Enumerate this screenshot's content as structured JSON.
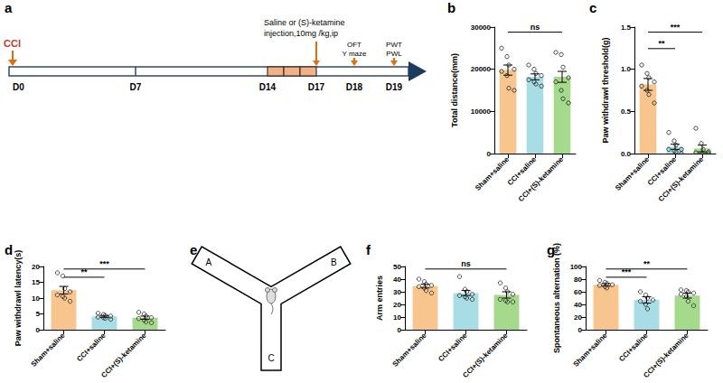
{
  "chart_data": [
    {
      "panel": "b",
      "type": "bar",
      "categories": [
        "Sham+saline",
        "CCI+saline",
        "CCI+(S)-ketamine"
      ],
      "values": [
        19800,
        18200,
        18200
      ],
      "errors": [
        1200,
        700,
        1300
      ],
      "points": [
        [
          25000,
          23000,
          21000,
          20000,
          19500,
          18500,
          15500,
          15000
        ],
        [
          21000,
          20000,
          19000,
          18500,
          17500,
          17000,
          16500,
          16000
        ],
        [
          24000,
          23500,
          20500,
          18000,
          17000,
          15000,
          13000,
          12000
        ]
      ],
      "colors": [
        "#f8c58e",
        "#a9dde6",
        "#a5d98c"
      ],
      "ylabel": "Total distance(mm)",
      "ylim": [
        0,
        30000
      ],
      "yticks": [
        0,
        10000,
        20000,
        30000
      ],
      "grid": false,
      "annotations": [
        {
          "from": 0,
          "to": 2,
          "text": "ns"
        }
      ]
    },
    {
      "panel": "c",
      "type": "bar",
      "categories": [
        "Sham+saline",
        "CCI+saline",
        "CCI+(S)-ketamine"
      ],
      "values": [
        0.82,
        0.08,
        0.06
      ],
      "errors": [
        0.07,
        0.03,
        0.04
      ],
      "points": [
        [
          1.05,
          0.95,
          0.9,
          0.85,
          0.8,
          0.75,
          0.7,
          0.6
        ],
        [
          0.25,
          0.15,
          0.1,
          0.05,
          0.05,
          0.03,
          0.02,
          0.0
        ],
        [
          0.3,
          0.12,
          0.05,
          0.02,
          0.01,
          0.0,
          0.0,
          0.0
        ]
      ],
      "colors": [
        "#f8c58e",
        "#a9dde6",
        "#a5d98c"
      ],
      "ylabel": "Paw withdrawl threshold(g)",
      "ylim": [
        0,
        1.5
      ],
      "yticks": [
        {
          "value": 0,
          "label": "0.0"
        },
        0.5,
        {
          "value": 1,
          "label": "1.0"
        },
        1.5
      ],
      "grid": false,
      "annotations": [
        {
          "from": 0,
          "to": 1,
          "text": "**"
        },
        {
          "from": 0,
          "to": 2,
          "text": "***"
        }
      ]
    },
    {
      "panel": "d",
      "type": "bar",
      "categories": [
        "Sham+saline",
        "CCI+saline",
        "CCI+(S)-ketamine"
      ],
      "values": [
        12.5,
        4.2,
        3.8
      ],
      "errors": [
        1.2,
        0.3,
        0.5
      ],
      "points": [
        [
          18,
          17,
          13,
          12,
          11,
          10.5,
          10,
          9
        ],
        [
          5.2,
          4.8,
          4.5,
          4.3,
          4.0,
          3.8,
          3.6,
          3.3
        ],
        [
          5.5,
          5.0,
          4.3,
          3.8,
          3.5,
          3.0,
          2.5,
          2.2
        ]
      ],
      "colors": [
        "#f8c58e",
        "#a9dde6",
        "#a5d98c"
      ],
      "ylabel": "Paw withdrawl latency(s)",
      "ylim": [
        0,
        20
      ],
      "yticks": [
        0,
        5,
        10,
        15,
        20
      ],
      "grid": false,
      "annotations": [
        {
          "from": 0,
          "to": 1,
          "text": "**"
        },
        {
          "from": 0,
          "to": 2,
          "text": "***"
        }
      ]
    },
    {
      "panel": "f",
      "type": "bar",
      "categories": [
        "Sham+saline",
        "CCI+saline",
        "CCI+(S)-ketamine"
      ],
      "values": [
        34.5,
        29,
        27.5
      ],
      "errors": [
        1.5,
        2,
        2.5
      ],
      "points": [
        [
          40,
          38,
          36,
          35,
          34,
          33,
          31,
          29
        ],
        [
          42,
          32,
          30,
          28,
          27,
          26,
          25,
          24
        ],
        [
          37,
          33,
          30,
          28,
          24,
          23,
          22,
          22
        ]
      ],
      "colors": [
        "#f8c58e",
        "#a9dde6",
        "#a5d98c"
      ],
      "ylabel": "Arm entries",
      "ylim": [
        0,
        50
      ],
      "yticks": [
        0,
        10,
        20,
        30,
        40,
        50
      ],
      "grid": false,
      "annotations": [
        {
          "from": 0,
          "to": 2,
          "text": "ns"
        }
      ]
    },
    {
      "panel": "g",
      "type": "bar",
      "categories": [
        "Sham+saline",
        "CCI+saline",
        "CCI+(S)-ketamine"
      ],
      "values": [
        71,
        47,
        54
      ],
      "errors": [
        2,
        5,
        4
      ],
      "points": [
        [
          78,
          75,
          73,
          71,
          70,
          68,
          66
        ],
        [
          60,
          55,
          50,
          47,
          45,
          40,
          33
        ],
        [
          63,
          62,
          60,
          58,
          56,
          53,
          45,
          38
        ]
      ],
      "colors": [
        "#f8c58e",
        "#a9dde6",
        "#a5d98c"
      ],
      "ylabel": "Spontaneous alternation (%)",
      "ylim": [
        0,
        100
      ],
      "yticks": [
        0,
        20,
        40,
        60,
        80,
        100
      ],
      "grid": false,
      "annotations": [
        {
          "from": 0,
          "to": 1,
          "text": "***"
        },
        {
          "from": 0,
          "to": 2,
          "text": "**"
        }
      ]
    }
  ],
  "diagrams": {
    "a": {
      "panel": "a",
      "model": "CCI",
      "days": [
        "D0",
        "D7",
        "D14",
        "D17",
        "D18",
        "D19"
      ],
      "injection": [
        "Saline or (S)-ketamine",
        "injection,10mg /kg,ip"
      ],
      "tests_d18": [
        "OFT",
        "Y maze"
      ],
      "tests_d19": [
        "PWT",
        "PWL"
      ]
    },
    "e": {
      "panel": "e",
      "arms": [
        "A",
        "B",
        "C"
      ]
    }
  }
}
